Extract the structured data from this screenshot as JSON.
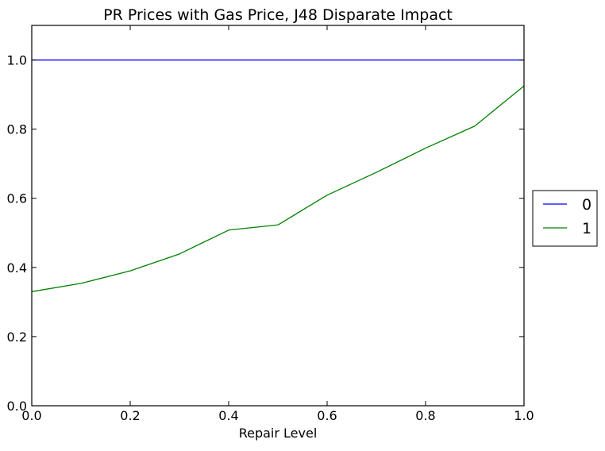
{
  "chart_data": {
    "type": "line",
    "title": "PR Prices with Gas Price, J48 Disparate Impact",
    "xlabel": "Repair Level",
    "ylabel": "",
    "xlim": [
      0.0,
      1.0
    ],
    "ylim": [
      0.0,
      1.1
    ],
    "xticks": [
      0.0,
      0.2,
      0.4,
      0.6,
      0.8,
      1.0
    ],
    "xtick_labels": [
      "0.0",
      "0.2",
      "0.4",
      "0.6",
      "0.8",
      "1.0"
    ],
    "yticks": [
      0.0,
      0.2,
      0.4,
      0.6,
      0.8,
      1.0
    ],
    "ytick_labels": [
      "0.0",
      "0.2",
      "0.4",
      "0.6",
      "0.8",
      "1.0"
    ],
    "grid": false,
    "legend_position": "outside-right",
    "x": [
      0.0,
      0.1,
      0.2,
      0.3,
      0.4,
      0.5,
      0.6,
      0.7,
      0.8,
      0.9,
      1.0
    ],
    "series": [
      {
        "name": "0",
        "color": "#0000ff",
        "values": [
          1.0,
          1.0,
          1.0,
          1.0,
          1.0,
          1.0,
          1.0,
          1.0,
          1.0,
          1.0,
          1.0
        ]
      },
      {
        "name": "1",
        "color": "#008000",
        "values": [
          0.33,
          0.354,
          0.39,
          0.439,
          0.508,
          0.523,
          0.609,
          0.675,
          0.745,
          0.809,
          0.925
        ]
      }
    ]
  }
}
